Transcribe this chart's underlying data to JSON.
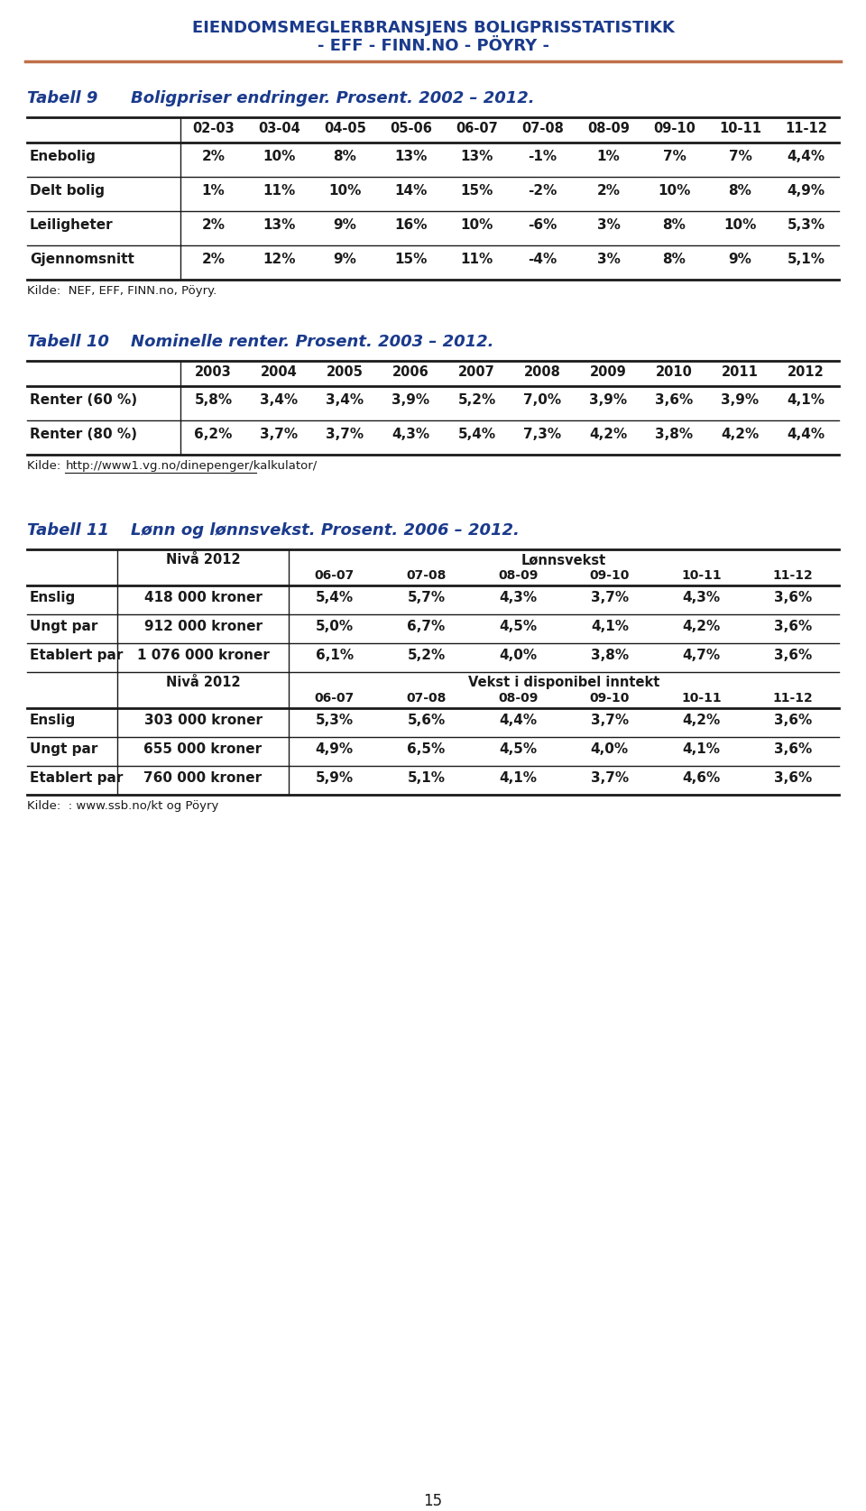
{
  "header_line1": "EIENDOMSMEGLERBRANSJENS BOLIGPRISSTATISTIKK",
  "header_line2": "- EFF - FINN.NO - PÖYRY -",
  "header_color": "#1a3a8c",
  "header_divider_color": "#c0704a",
  "page_number": "15",
  "tabell9": {
    "title_num": "Tabell 9",
    "title_text": "Boligpriser endringer. Prosent. 2002 – 2012.",
    "col_headers": [
      "02-03",
      "03-04",
      "04-05",
      "05-06",
      "06-07",
      "07-08",
      "08-09",
      "09-10",
      "10-11",
      "11-12"
    ],
    "rows": [
      {
        "label": "Enebolig",
        "values": [
          "2%",
          "10%",
          "8%",
          "13%",
          "13%",
          "-1%",
          "1%",
          "7%",
          "7%",
          "4,4%"
        ]
      },
      {
        "label": "Delt bolig",
        "values": [
          "1%",
          "11%",
          "10%",
          "14%",
          "15%",
          "-2%",
          "2%",
          "10%",
          "8%",
          "4,9%"
        ]
      },
      {
        "label": "Leiligheter",
        "values": [
          "2%",
          "13%",
          "9%",
          "16%",
          "10%",
          "-6%",
          "3%",
          "8%",
          "10%",
          "5,3%"
        ]
      },
      {
        "label": "Gjennomsnitt",
        "values": [
          "2%",
          "12%",
          "9%",
          "15%",
          "11%",
          "-4%",
          "3%",
          "8%",
          "9%",
          "5,1%"
        ]
      }
    ],
    "source": "Kilde:  NEF, EFF, FINN.no, Pöyry."
  },
  "tabell10": {
    "title_num": "Tabell 10",
    "title_text": "Nominelle renter. Prosent. 2003 – 2012.",
    "col_headers": [
      "2003",
      "2004",
      "2005",
      "2006",
      "2007",
      "2008",
      "2009",
      "2010",
      "2011",
      "2012"
    ],
    "rows": [
      {
        "label": "Renter (60 %)",
        "values": [
          "5,8%",
          "3,4%",
          "3,4%",
          "3,9%",
          "5,2%",
          "7,0%",
          "3,9%",
          "3,6%",
          "3,9%",
          "4,1%"
        ]
      },
      {
        "label": "Renter (80 %)",
        "values": [
          "6,2%",
          "3,7%",
          "3,7%",
          "4,3%",
          "5,4%",
          "7,3%",
          "4,2%",
          "3,8%",
          "4,2%",
          "4,4%"
        ]
      }
    ],
    "source_prefix": "Kilde:  ",
    "source_url": "http://www1.vg.no/dinepenger/kalkulator/"
  },
  "tabell11": {
    "title_num": "Tabell 11",
    "title_text": "Lønn og lønnsvekst. Prosent. 2006 – 2012.",
    "col1_header": "Nivå 2012",
    "col2_header": "Lønnsvekst",
    "sub_col_headers": [
      "06-07",
      "07-08",
      "08-09",
      "09-10",
      "10-11",
      "11-12"
    ],
    "rows_top": [
      {
        "label": "Enslig",
        "niva": "418 000 kroner",
        "values": [
          "5,4%",
          "5,7%",
          "4,3%",
          "3,7%",
          "4,3%",
          "3,6%"
        ]
      },
      {
        "label": "Ungt par",
        "niva": "912 000 kroner",
        "values": [
          "5,0%",
          "6,7%",
          "4,5%",
          "4,1%",
          "4,2%",
          "3,6%"
        ]
      },
      {
        "label": "Etablert par",
        "niva": "1 076 000 kroner",
        "values": [
          "6,1%",
          "5,2%",
          "4,0%",
          "3,8%",
          "4,7%",
          "3,6%"
        ]
      }
    ],
    "col2_header2": "Vekst i disponibel inntekt",
    "rows_bottom": [
      {
        "label": "Enslig",
        "niva": "303 000 kroner",
        "values": [
          "5,3%",
          "5,6%",
          "4,4%",
          "3,7%",
          "4,2%",
          "3,6%"
        ]
      },
      {
        "label": "Ungt par",
        "niva": "655 000 kroner",
        "values": [
          "4,9%",
          "6,5%",
          "4,5%",
          "4,0%",
          "4,1%",
          "3,6%"
        ]
      },
      {
        "label": "Etablert par",
        "niva": "760 000 kroner",
        "values": [
          "5,9%",
          "5,1%",
          "4,1%",
          "3,7%",
          "4,6%",
          "3,6%"
        ]
      }
    ],
    "source": "Kilde:  : www.ssb.no/kt og Pöyry"
  },
  "text_color": "#1a1a1a",
  "title_color": "#1a3a8c",
  "table_border_color": "#1a1a1a",
  "bg_color": "#ffffff"
}
